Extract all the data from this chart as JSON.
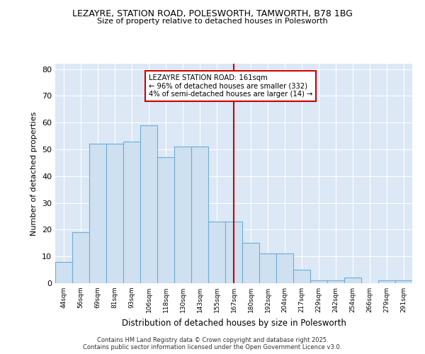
{
  "title1": "LEZAYRE, STATION ROAD, POLESWORTH, TAMWORTH, B78 1BG",
  "title2": "Size of property relative to detached houses in Polesworth",
  "xlabel": "Distribution of detached houses by size in Polesworth",
  "ylabel": "Number of detached properties",
  "categories": [
    "44sqm",
    "56sqm",
    "69sqm",
    "81sqm",
    "93sqm",
    "106sqm",
    "118sqm",
    "130sqm",
    "143sqm",
    "155sqm",
    "167sqm",
    "180sqm",
    "192sqm",
    "204sqm",
    "217sqm",
    "229sqm",
    "242sqm",
    "254sqm",
    "266sqm",
    "279sqm",
    "291sqm"
  ],
  "values": [
    8,
    19,
    52,
    52,
    53,
    59,
    47,
    51,
    51,
    23,
    23,
    15,
    11,
    11,
    5,
    1,
    1,
    2,
    0,
    1,
    1
  ],
  "bar_color": "#cfe0f0",
  "bar_edge_color": "#6baed6",
  "vline_x": 10.0,
  "vline_color": "#cc0000",
  "annotation_text": "LEZAYRE STATION ROAD: 161sqm\n← 96% of detached houses are smaller (332)\n4% of semi-detached houses are larger (14) →",
  "annotation_box_color": "white",
  "annotation_box_edge": "#cc0000",
  "ylim": [
    0,
    82
  ],
  "yticks": [
    0,
    10,
    20,
    30,
    40,
    50,
    60,
    70,
    80
  ],
  "footer": "Contains HM Land Registry data © Crown copyright and database right 2025.\nContains public sector information licensed under the Open Government Licence v3.0.",
  "fig_bg_color": "#ffffff",
  "plot_bg_color": "#dce8f5"
}
